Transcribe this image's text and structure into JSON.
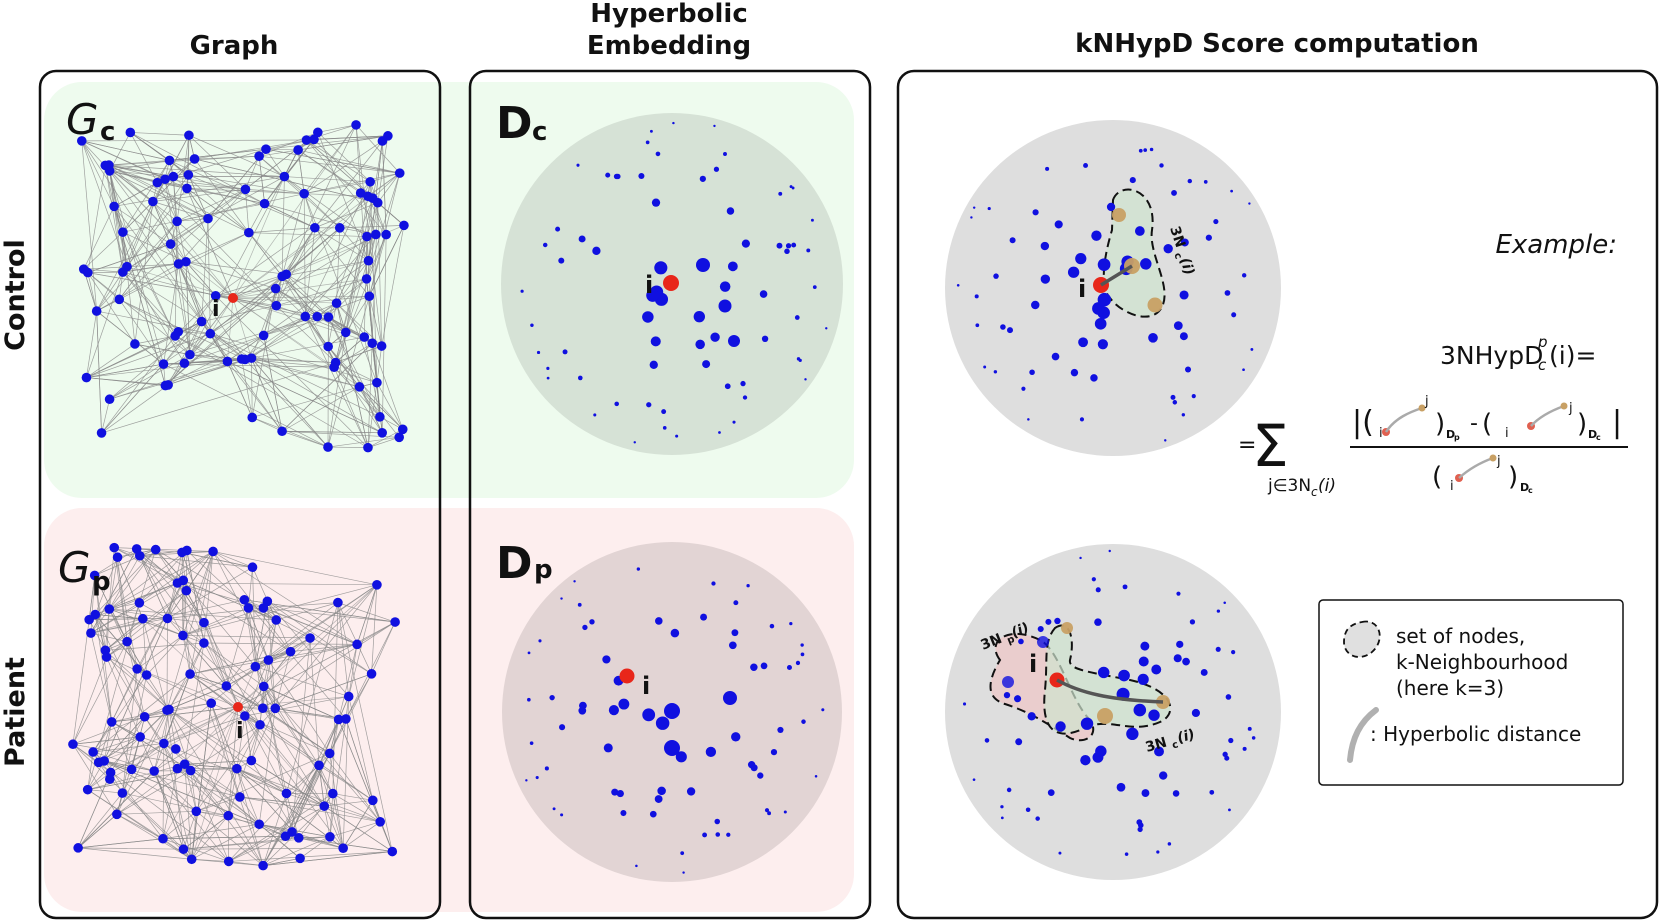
{
  "headers": {
    "graph": "Graph",
    "embedding_line1": "Hyperbolic",
    "embedding_line2": "Embedding",
    "score": "kNHypD Score computation"
  },
  "rows": {
    "control": "Control",
    "patient": "Patient"
  },
  "labels": {
    "gc_main": "G",
    "gc_sub": "c",
    "gp_main": "G",
    "gp_sub": "p",
    "dc_main": "D",
    "dc_sub": "c",
    "dp_main": "D",
    "dp_sub": "p",
    "node_i": "i",
    "neigh_c": "3N",
    "neigh_c_sub": "c",
    "neigh_c_arg": "(i)",
    "neigh_p": "3N",
    "neigh_p_sub": "p",
    "neigh_p_arg": "(i)"
  },
  "formula": {
    "example": "Example:",
    "lhs": "3NHypD",
    "lhs_sup": "p",
    "lhs_sub": "c",
    "lhs_tail": "(i)=",
    "equals": "=",
    "sum": "Σ",
    "sum_index": "j∈3N",
    "sum_index_sub": "c",
    "sum_index_tail": "(i)",
    "i": "i",
    "j": "j",
    "dp": "D",
    "dp_sub": "p",
    "dc": "D",
    "dc_sub": "c",
    "minus": "-"
  },
  "legend": {
    "set_line1": "set of nodes,",
    "set_line2": "k-Neighbourhood",
    "set_line3": "(here k=3)",
    "dist": ": Hyperbolic distance"
  },
  "colors": {
    "node": "#1010e0",
    "node_i": "#e8261a",
    "neighbour": "#c8a064",
    "control_bg": "#eefaee",
    "patient_bg": "#fcecec",
    "disk": "#dcdcdc",
    "edge": "#8a8a8a"
  }
}
